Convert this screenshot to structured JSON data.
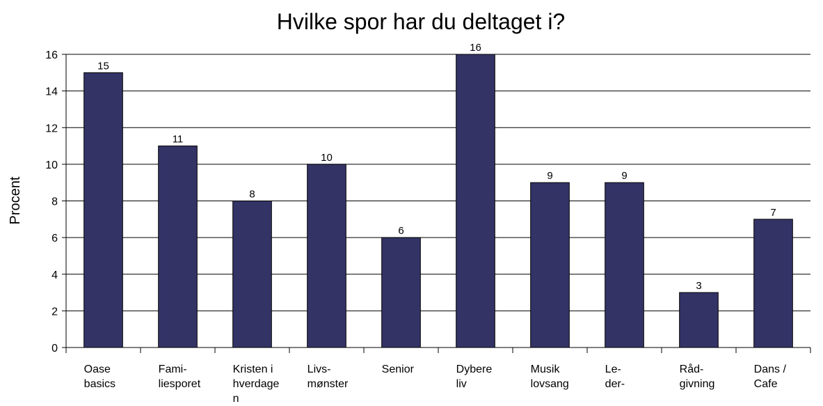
{
  "chart_data": {
    "type": "bar",
    "title": "Hvilke spor har du deltaget i?",
    "y_label": "Procent",
    "categories": [
      "Oase\nbasics",
      "Fami-\nliesporet",
      "Kristen i\nhverdage\nn",
      "Livs-\nmønster",
      "Senior",
      "Dybere\nliv",
      "Musik\nlovsang",
      "Le-\nder-",
      "Råd-\ngivning",
      "Dans /\nCafe"
    ],
    "values": [
      15,
      11,
      8,
      10,
      6,
      16,
      9,
      9,
      3,
      7
    ],
    "color": "#333366",
    "ylim": [
      0,
      16
    ],
    "yticks": [
      0,
      2,
      4,
      6,
      8,
      10,
      12,
      14,
      16
    ],
    "grid": true
  }
}
